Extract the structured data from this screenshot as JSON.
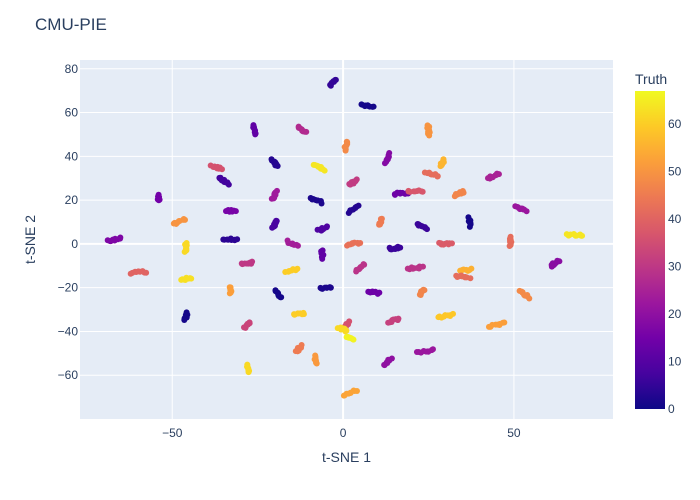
{
  "chart_data": {
    "type": "scatter",
    "title": "CMU-PIE",
    "xlabel": "t-SNE 1",
    "ylabel": "t-SNE 2",
    "xlim": [
      -77,
      79
    ],
    "ylim": [
      -80,
      84
    ],
    "x_ticks": [
      -50,
      0,
      50
    ],
    "x_tick_labels": [
      "−50",
      "0",
      "50"
    ],
    "y_ticks": [
      -60,
      -40,
      -20,
      0,
      20,
      40,
      60,
      80
    ],
    "y_tick_labels": [
      "−60",
      "−40",
      "−20",
      "0",
      "20",
      "40",
      "60",
      "80"
    ],
    "grid": true,
    "colorbar": {
      "title": "Truth",
      "range": [
        0,
        67
      ],
      "ticks": [
        0,
        10,
        20,
        30,
        40,
        50,
        60
      ],
      "colorscale": [
        "#0d0887",
        "#46039f",
        "#7201a8",
        "#9c179e",
        "#bd3786",
        "#d8576b",
        "#ed7953",
        "#fb9f3a",
        "#fdca26",
        "#f0f921"
      ]
    },
    "clusters": [
      {
        "x": -3,
        "y": 74,
        "truth": 5
      },
      {
        "x": 7,
        "y": 63,
        "truth": 1
      },
      {
        "x": -26,
        "y": 52,
        "truth": 12
      },
      {
        "x": -12,
        "y": 52,
        "truth": 27
      },
      {
        "x": 25,
        "y": 52,
        "truth": 50
      },
      {
        "x": 1,
        "y": 45,
        "truth": 48
      },
      {
        "x": 13,
        "y": 39,
        "truth": 18
      },
      {
        "x": -20,
        "y": 37,
        "truth": 3
      },
      {
        "x": -37,
        "y": 35,
        "truth": 36
      },
      {
        "x": -7,
        "y": 35,
        "truth": 64
      },
      {
        "x": 29,
        "y": 37,
        "truth": 56
      },
      {
        "x": 26,
        "y": 32,
        "truth": 42
      },
      {
        "x": -35,
        "y": 29,
        "truth": 7
      },
      {
        "x": 3,
        "y": 28,
        "truth": 31
      },
      {
        "x": 44,
        "y": 31,
        "truth": 25
      },
      {
        "x": 17,
        "y": 23,
        "truth": 14
      },
      {
        "x": 21,
        "y": 24,
        "truth": 37
      },
      {
        "x": -54,
        "y": 21,
        "truth": 15
      },
      {
        "x": -20,
        "y": 22,
        "truth": 23
      },
      {
        "x": -8,
        "y": 20,
        "truth": 2
      },
      {
        "x": 34,
        "y": 23,
        "truth": 47
      },
      {
        "x": 3,
        "y": 16,
        "truth": 3
      },
      {
        "x": -33,
        "y": 15,
        "truth": 16
      },
      {
        "x": 52,
        "y": 16,
        "truth": 22
      },
      {
        "x": -48,
        "y": 10,
        "truth": 50
      },
      {
        "x": 11,
        "y": 10,
        "truth": 45
      },
      {
        "x": -20,
        "y": 9,
        "truth": 8
      },
      {
        "x": -6,
        "y": 7,
        "truth": 9
      },
      {
        "x": 23,
        "y": 8,
        "truth": 6
      },
      {
        "x": 37,
        "y": 10,
        "truth": 1
      },
      {
        "x": -67,
        "y": 2,
        "truth": 17
      },
      {
        "x": -33,
        "y": 2,
        "truth": 4
      },
      {
        "x": -15,
        "y": 0,
        "truth": 24
      },
      {
        "x": 3,
        "y": 0,
        "truth": 43
      },
      {
        "x": 15,
        "y": -2,
        "truth": 6
      },
      {
        "x": 30,
        "y": 0,
        "truth": 38
      },
      {
        "x": 49,
        "y": 1,
        "truth": 42
      },
      {
        "x": 68,
        "y": 4,
        "truth": 64
      },
      {
        "x": -46,
        "y": -2,
        "truth": 62
      },
      {
        "x": -6,
        "y": -5,
        "truth": 12
      },
      {
        "x": -28,
        "y": -9,
        "truth": 30
      },
      {
        "x": 5,
        "y": -11,
        "truth": 29
      },
      {
        "x": 21,
        "y": -11,
        "truth": 29
      },
      {
        "x": 36,
        "y": -12,
        "truth": 55
      },
      {
        "x": 62,
        "y": -9,
        "truth": 19
      },
      {
        "x": -60,
        "y": -13,
        "truth": 40
      },
      {
        "x": -15,
        "y": -12,
        "truth": 60
      },
      {
        "x": -46,
        "y": -16,
        "truth": 63
      },
      {
        "x": 35,
        "y": -15,
        "truth": 42
      },
      {
        "x": -33,
        "y": -21,
        "truth": 52
      },
      {
        "x": -19,
        "y": -23,
        "truth": 1
      },
      {
        "x": -5,
        "y": -20,
        "truth": 2
      },
      {
        "x": 9,
        "y": -22,
        "truth": 14
      },
      {
        "x": 23,
        "y": -22,
        "truth": 47
      },
      {
        "x": 53,
        "y": -23,
        "truth": 48
      },
      {
        "x": -46,
        "y": -33,
        "truth": 1
      },
      {
        "x": -13,
        "y": -32,
        "truth": 60
      },
      {
        "x": 15,
        "y": -35,
        "truth": 32
      },
      {
        "x": 30,
        "y": -33,
        "truth": 59
      },
      {
        "x": -28,
        "y": -37,
        "truth": 33
      },
      {
        "x": 1,
        "y": -37,
        "truth": 36
      },
      {
        "x": 45,
        "y": -37,
        "truth": 52
      },
      {
        "x": 0,
        "y": -39,
        "truth": 62
      },
      {
        "x": 2,
        "y": -43,
        "truth": 66
      },
      {
        "x": -13,
        "y": -48,
        "truth": 45
      },
      {
        "x": 24,
        "y": -49,
        "truth": 22
      },
      {
        "x": -8,
        "y": -53,
        "truth": 51
      },
      {
        "x": 13,
        "y": -54,
        "truth": 20
      },
      {
        "x": -28,
        "y": -57,
        "truth": 62
      },
      {
        "x": 2,
        "y": -68,
        "truth": 53
      }
    ]
  }
}
